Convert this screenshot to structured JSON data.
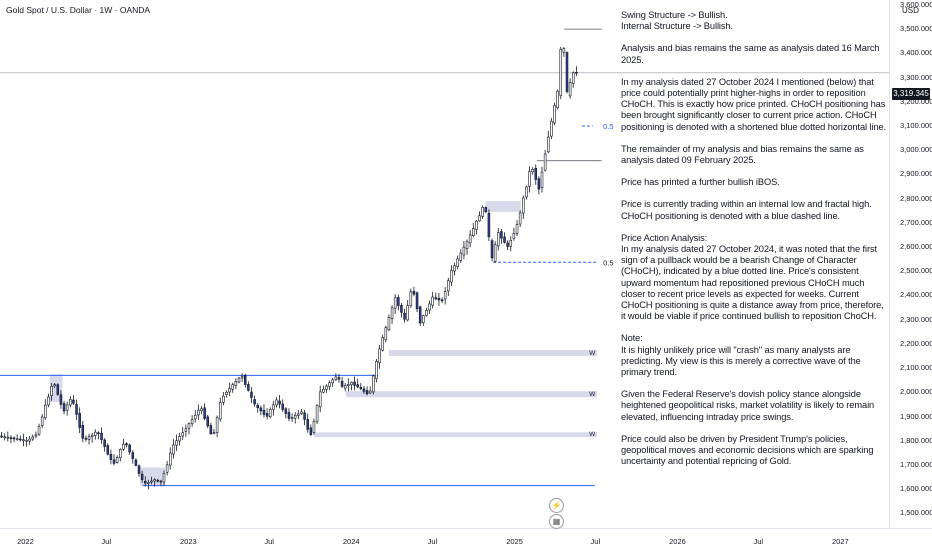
{
  "header": {
    "symbol_title": "Gold Spot / U.S. Dollar · 1W · OANDA",
    "currency": "USD"
  },
  "price_tag": "3,319.345",
  "notes": [
    "Swing Structure -> Bullish.\nInternal Structure -> Bullish.",
    "Analysis and bias remains the same as analysis dated 16 March 2025.",
    "In my analysis dated 27 October 2024 I mentioned (below) that price could potentially print higher-highs in order to reposition CHoCH.  This is exactly how price printed.  CHoCH positioning has been brought significantly closer to current price action.  CHoCH positioning is denoted with a shortened blue dotted horizontal line.",
    "The remainder of my analysis and bias remains the same as analysis dated 09 February 2025.",
    "Price has printed a further bullish iBOS.",
    "Price is currently trading within an internal low and fractal high.  CHoCH positioning is denoted with a blue dashed line.",
    "Price Action Analysis:\nIn my analysis dated 27 October 2024, it was noted that the first sign of a pullback would be a bearish Change of Character (CHoCH), indicated by a blue dotted line. Price's consistent upward momentum had repositioned previous CHoCH much closer to recent price levels as expected for weeks. Current CHoCH positioning is quite a distance away from price, therefore, it would be viable if price continued bullish to reposition ChoCH.",
    "Note:\nIt is highly unlikely price will \"crash\" as many analysts are predicting.  My view is this is merely a corrective wave of the primary trend.",
    "Given the Federal Reserve's dovish policy stance alongside heightened geopolitical risks, market volatility is likely to remain elevated, influencing intraday price swings.",
    "Price could also be driven by President Trump's policies, geopolitical moves and economic decisions which are sparking uncertainty and potential repricing of Gold."
  ],
  "annotations": {
    "fib_label_upper": "0.5",
    "fib_label_lower": "0.5",
    "zone_label": "W"
  },
  "icons": [
    "lightning-icon",
    "calendar-icon"
  ],
  "colors": {
    "up": "#ffffff",
    "down": "#2a3f8f",
    "wick": "#131722",
    "structure_line": "#2962ff",
    "zone": "#d1d4e8",
    "zone_top": "#c5c8dc"
  },
  "chart_data": {
    "type": "candlestick",
    "title": "Gold Spot / U.S. Dollar · 1W · OANDA",
    "ylabel": "USD",
    "ylim": [
      1440,
      3620
    ],
    "y_ticks": [
      1500,
      1600,
      1700,
      1800,
      1900,
      2000,
      2100,
      2200,
      2300,
      2400,
      2500,
      2600,
      2700,
      2800,
      2900,
      3000,
      3100,
      3200,
      3300,
      3400,
      3500,
      3600
    ],
    "y_tick_labels": [
      "1,500.000",
      "1,600.000",
      "1,700.000",
      "1,800.000",
      "1,900.000",
      "2,000.000",
      "2,100.000",
      "2,200.000",
      "2,300.000",
      "2,400.000",
      "2,500.000",
      "2,600.000",
      "2,700.000",
      "2,800.000",
      "2,900.000",
      "3,000.000",
      "3,100.000",
      "3,200.000",
      "3,300.000",
      "3,400.000",
      "3,500.000",
      "3,600.000"
    ],
    "x_ticks": [
      "2022",
      "Jul",
      "2023",
      "Jul",
      "2024",
      "Jul",
      "2025",
      "Jul",
      "2026",
      "Jul",
      "2027"
    ],
    "x_tick_dates": [
      "2022-01-01",
      "2022-07-01",
      "2023-01-01",
      "2023-07-01",
      "2024-01-01",
      "2024-07-01",
      "2025-01-01",
      "2025-07-01",
      "2026-01-01",
      "2026-07-01",
      "2027-01-01"
    ],
    "x_range": [
      "2021-11-05",
      "2027-04-20"
    ],
    "current_price": 3319.345,
    "price_path": [
      [
        "2021-11-05",
        1820
      ],
      [
        "2022-01-10",
        1800
      ],
      [
        "2022-01-30",
        1830
      ],
      [
        "2022-03-08",
        2050
      ],
      [
        "2022-03-30",
        1920
      ],
      [
        "2022-04-18",
        1980
      ],
      [
        "2022-05-15",
        1800
      ],
      [
        "2022-06-15",
        1840
      ],
      [
        "2022-07-20",
        1700
      ],
      [
        "2022-08-15",
        1800
      ],
      [
        "2022-09-27",
        1620
      ],
      [
        "2022-10-20",
        1640
      ],
      [
        "2022-11-05",
        1630
      ],
      [
        "2022-12-01",
        1780
      ],
      [
        "2023-01-10",
        1880
      ],
      [
        "2023-02-01",
        1940
      ],
      [
        "2023-02-28",
        1810
      ],
      [
        "2023-03-20",
        1980
      ],
      [
        "2023-05-04",
        2070
      ],
      [
        "2023-06-01",
        1950
      ],
      [
        "2023-06-29",
        1900
      ],
      [
        "2023-07-20",
        1970
      ],
      [
        "2023-08-20",
        1890
      ],
      [
        "2023-09-15",
        1920
      ],
      [
        "2023-10-05",
        1820
      ],
      [
        "2023-10-27",
        2000
      ],
      [
        "2023-12-04",
        2070
      ],
      [
        "2023-12-15",
        2020
      ],
      [
        "2024-01-05",
        2040
      ],
      [
        "2024-02-14",
        1990
      ],
      [
        "2024-03-08",
        2180
      ],
      [
        "2024-04-12",
        2390
      ],
      [
        "2024-05-03",
        2300
      ],
      [
        "2024-05-20",
        2440
      ],
      [
        "2024-06-07",
        2290
      ],
      [
        "2024-07-05",
        2390
      ],
      [
        "2024-07-26",
        2380
      ],
      [
        "2024-08-16",
        2500
      ],
      [
        "2024-09-20",
        2620
      ],
      [
        "2024-10-30",
        2780
      ],
      [
        "2024-11-14",
        2540
      ],
      [
        "2024-11-29",
        2660
      ],
      [
        "2024-12-20",
        2600
      ],
      [
        "2025-01-10",
        2690
      ],
      [
        "2025-02-11",
        2940
      ],
      [
        "2025-02-28",
        2840
      ],
      [
        "2025-03-20",
        3050
      ],
      [
        "2025-04-11",
        3240
      ],
      [
        "2025-04-22",
        3500
      ],
      [
        "2025-05-02",
        3230
      ],
      [
        "2025-05-16",
        3320
      ]
    ],
    "structure_lines": [
      {
        "name": "range-high",
        "price": 2070,
        "from": "2021-11-05",
        "to": "2024-03-01"
      },
      {
        "name": "range-low",
        "price": 1615,
        "from": "2022-09-20",
        "to": "2025-06-30"
      },
      {
        "name": "current-price",
        "price": 3319.345,
        "from": "2021-11-05",
        "to": "2027-04-20"
      },
      {
        "name": "fractal-high",
        "price": 3500,
        "from": "2025-04-22",
        "to": "2025-07-15"
      },
      {
        "name": "internal-low",
        "price": 2957,
        "from": "2025-02-20",
        "to": "2025-07-15"
      },
      {
        "name": "older-high",
        "price": 2070,
        "from": "2022-03-01",
        "to": "2022-03-01"
      }
    ],
    "dashed_lines": [
      {
        "name": "choch-line",
        "price": 2537,
        "from": "2024-11-14",
        "to": "2025-07-05"
      },
      {
        "name": "fib-line-upper",
        "price": 3100,
        "from": "2025-06-01",
        "to": "2025-06-25"
      }
    ],
    "zones": [
      {
        "name": "weekly-zone-1",
        "low": 2150,
        "high": 2175,
        "from": "2024-03-25",
        "to": "2025-07-05"
      },
      {
        "name": "weekly-zone-2",
        "low": 1980,
        "high": 2005,
        "from": "2023-12-20",
        "to": "2025-07-05"
      },
      {
        "name": "weekly-zone-3",
        "low": 1815,
        "high": 1835,
        "from": "2023-10-10",
        "to": "2025-07-05"
      },
      {
        "name": "supply-zone-1",
        "low": 2745,
        "high": 2790,
        "from": "2024-10-28",
        "to": "2025-01-15"
      },
      {
        "name": "zone-2022-high",
        "low": 1960,
        "high": 2075,
        "from": "2022-02-25",
        "to": "2022-03-25"
      },
      {
        "name": "zone-2022-low",
        "low": 1615,
        "high": 1690,
        "from": "2022-09-15",
        "to": "2022-11-10"
      }
    ],
    "legend": "none",
    "grid": false
  }
}
